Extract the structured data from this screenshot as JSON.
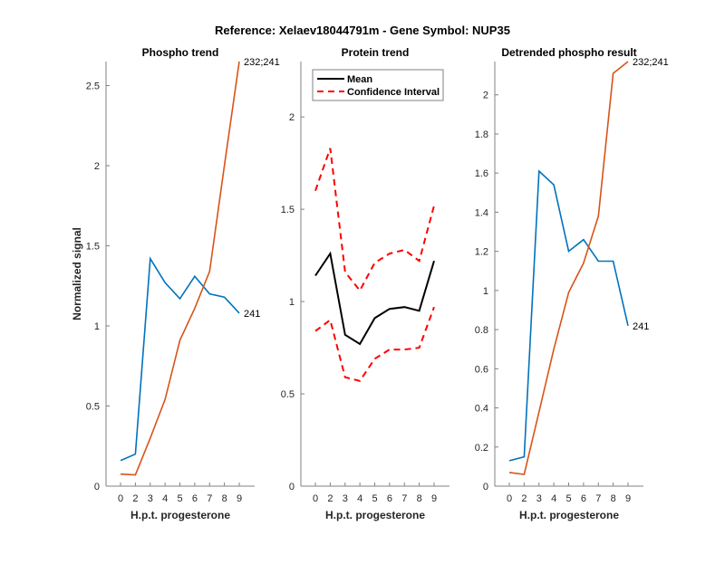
{
  "figure_title": "Reference:  Xelaev18044791m - Gene Symbol:  NUP35",
  "colors": {
    "blue": "#0072BD",
    "orange": "#D95319",
    "black": "#000000",
    "red": "#FF0000",
    "axis": "#262626"
  },
  "chart_data": [
    {
      "type": "line",
      "title": "Phospho trend",
      "xlabel": "H.p.t. progesterone",
      "ylabel": "Normalized signal",
      "categories": [
        "0",
        "2",
        "3",
        "4",
        "5",
        "6",
        "7",
        "8",
        "9"
      ],
      "ylim": [
        0,
        2.65
      ],
      "yticks": [
        0,
        0.5,
        1,
        1.5,
        2,
        2.5
      ],
      "ytick_labels": [
        "0",
        "0.5",
        "1",
        "1.5",
        "2",
        "2.5"
      ],
      "grid": false,
      "series": [
        {
          "name": "241",
          "color": "blue",
          "label": "241",
          "values": [
            0.16,
            0.2,
            1.42,
            1.27,
            1.17,
            1.31,
            1.2,
            1.18,
            1.08
          ]
        },
        {
          "name": "232;241",
          "color": "orange",
          "label": "232;241",
          "values": [
            0.075,
            0.07,
            0.3,
            0.54,
            0.91,
            1.11,
            1.34,
            2.0,
            2.65
          ]
        }
      ]
    },
    {
      "type": "line",
      "title": "Protein trend",
      "xlabel": "H.p.t. progesterone",
      "ylabel": "",
      "categories": [
        "0",
        "2",
        "3",
        "4",
        "5",
        "6",
        "7",
        "8",
        "9"
      ],
      "ylim": [
        0,
        2.3
      ],
      "yticks": [
        0,
        0.5,
        1,
        1.5,
        2
      ],
      "ytick_labels": [
        "0",
        "0.5",
        "1",
        "1.5",
        "2"
      ],
      "grid": false,
      "legend": {
        "placement": "top-left",
        "entries": [
          {
            "label": "Mean",
            "style": "solid",
            "color": "black"
          },
          {
            "label": "Confidence Interval",
            "style": "dashed",
            "color": "red"
          }
        ]
      },
      "series": [
        {
          "name": "Mean",
          "color": "black",
          "style": "solid",
          "values": [
            1.14,
            1.26,
            0.82,
            0.77,
            0.91,
            0.96,
            0.97,
            0.95,
            1.22
          ]
        },
        {
          "name": "Confidence Interval upper",
          "color": "red",
          "style": "dashed",
          "values": [
            1.6,
            1.83,
            1.16,
            1.06,
            1.21,
            1.26,
            1.28,
            1.22,
            1.52
          ]
        },
        {
          "name": "Confidence Interval lower",
          "color": "red",
          "style": "dashed",
          "values": [
            0.84,
            0.9,
            0.59,
            0.57,
            0.69,
            0.74,
            0.74,
            0.75,
            0.97
          ]
        }
      ]
    },
    {
      "type": "line",
      "title": "Detrended phospho result",
      "xlabel": "H.p.t. progesterone",
      "ylabel": "",
      "categories": [
        "0",
        "2",
        "3",
        "4",
        "5",
        "6",
        "7",
        "8",
        "9"
      ],
      "ylim": [
        0,
        2.17
      ],
      "yticks": [
        0,
        0.2,
        0.4,
        0.6,
        0.8,
        1,
        1.2,
        1.4,
        1.6,
        1.8,
        2
      ],
      "ytick_labels": [
        "0",
        "0.2",
        "0.4",
        "0.6",
        "0.8",
        "1",
        "1.2",
        "1.4",
        "1.6",
        "1.8",
        "2"
      ],
      "grid": false,
      "series": [
        {
          "name": "241",
          "color": "blue",
          "label": "241",
          "values": [
            0.13,
            0.15,
            1.61,
            1.54,
            1.2,
            1.26,
            1.15,
            1.15,
            0.82
          ]
        },
        {
          "name": "232;241",
          "color": "orange",
          "label": "232;241",
          "values": [
            0.07,
            0.06,
            0.38,
            0.7,
            0.99,
            1.14,
            1.38,
            2.11,
            2.17
          ]
        }
      ]
    }
  ]
}
